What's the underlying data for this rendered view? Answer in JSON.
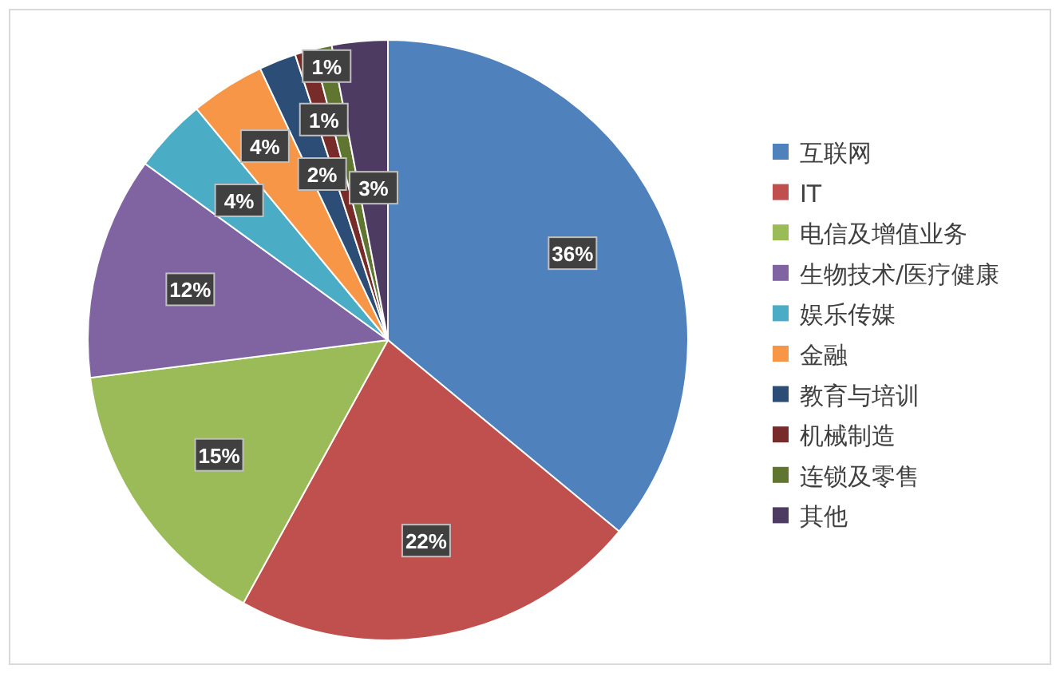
{
  "chart_data": {
    "type": "pie",
    "categories": [
      "互联网",
      "IT",
      "电信及增值业务",
      "生物技术/医疗健康",
      "娱乐传媒",
      "金融",
      "教育与培训",
      "机械制造",
      "连锁及零售",
      "其他"
    ],
    "values": [
      36,
      22,
      15,
      12,
      4,
      4,
      2,
      1,
      1,
      3
    ],
    "colors": [
      "#4f81bd",
      "#c0504d",
      "#9bbb59",
      "#8064a2",
      "#4bacc6",
      "#f79646",
      "#2c4d75",
      "#772c2a",
      "#5f7530",
      "#4d3b62"
    ],
    "value_labels": [
      "36%",
      "22%",
      "15%",
      "12%",
      "4%",
      "4%",
      "2%",
      "1%",
      "1%",
      "3%"
    ],
    "legend": "right"
  }
}
